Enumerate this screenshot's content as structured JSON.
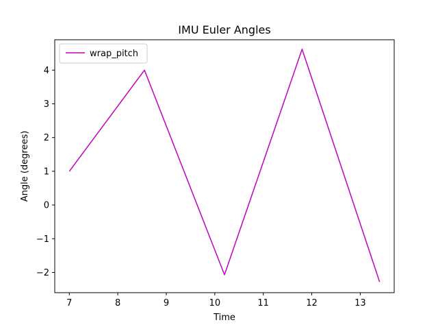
{
  "chart_data": {
    "type": "line",
    "title": "IMU Euler Angles",
    "xlabel": "Time",
    "ylabel": "Angle (degrees)",
    "xlim": [
      6.7,
      13.7
    ],
    "ylim": [
      -2.6,
      4.9
    ],
    "xticks": [
      7,
      8,
      9,
      10,
      11,
      12,
      13
    ],
    "xtick_labels": [
      "7",
      "8",
      "9",
      "10",
      "11",
      "12",
      "13"
    ],
    "yticks": [
      -2,
      -1,
      0,
      1,
      2,
      3,
      4
    ],
    "ytick_labels": [
      "−2",
      "−1",
      "0",
      "1",
      "2",
      "3",
      "4"
    ],
    "grid": false,
    "legend_position": "upper-left",
    "series": [
      {
        "name": "wrap_pitch",
        "color": "#bf00bf",
        "x": [
          7.0,
          8.55,
          10.2,
          11.8,
          13.4
        ],
        "y": [
          1.0,
          4.0,
          -2.07,
          4.62,
          -2.28
        ]
      }
    ]
  }
}
